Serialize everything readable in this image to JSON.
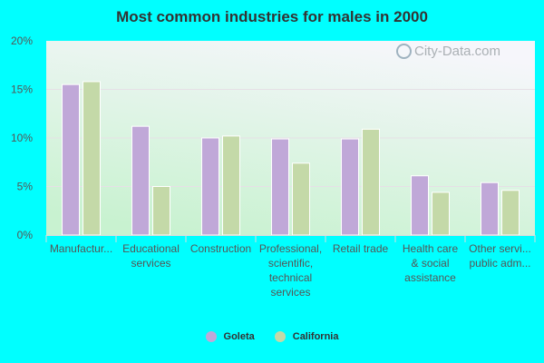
{
  "watermark": "City-Data.com",
  "chart_data": {
    "type": "bar",
    "title": "Most common industries for males in 2000",
    "xlabel": "",
    "ylabel": "",
    "ylim": [
      0,
      20
    ],
    "yticks": [
      "0%",
      "5%",
      "10%",
      "15%",
      "20%"
    ],
    "ytick_values": [
      0,
      5,
      10,
      15,
      20
    ],
    "grid": true,
    "legend_position": "bottom",
    "categories": [
      [
        "Manufactur..."
      ],
      [
        "Educational",
        "services"
      ],
      [
        "Construction"
      ],
      [
        "Professional,",
        "scientific,",
        "technical",
        "services"
      ],
      [
        "Retail trade"
      ],
      [
        "Health care",
        "& social",
        "assistance"
      ],
      [
        "Other servi...",
        "public adm..."
      ]
    ],
    "series": [
      {
        "name": "Goleta",
        "color": "#c0a8d8",
        "values": [
          15.5,
          11.2,
          10.0,
          9.9,
          9.9,
          6.1,
          5.4
        ]
      },
      {
        "name": "California",
        "color": "#c4d9a8",
        "values": [
          15.8,
          5.0,
          10.2,
          7.4,
          10.9,
          4.4,
          4.6
        ]
      }
    ]
  }
}
